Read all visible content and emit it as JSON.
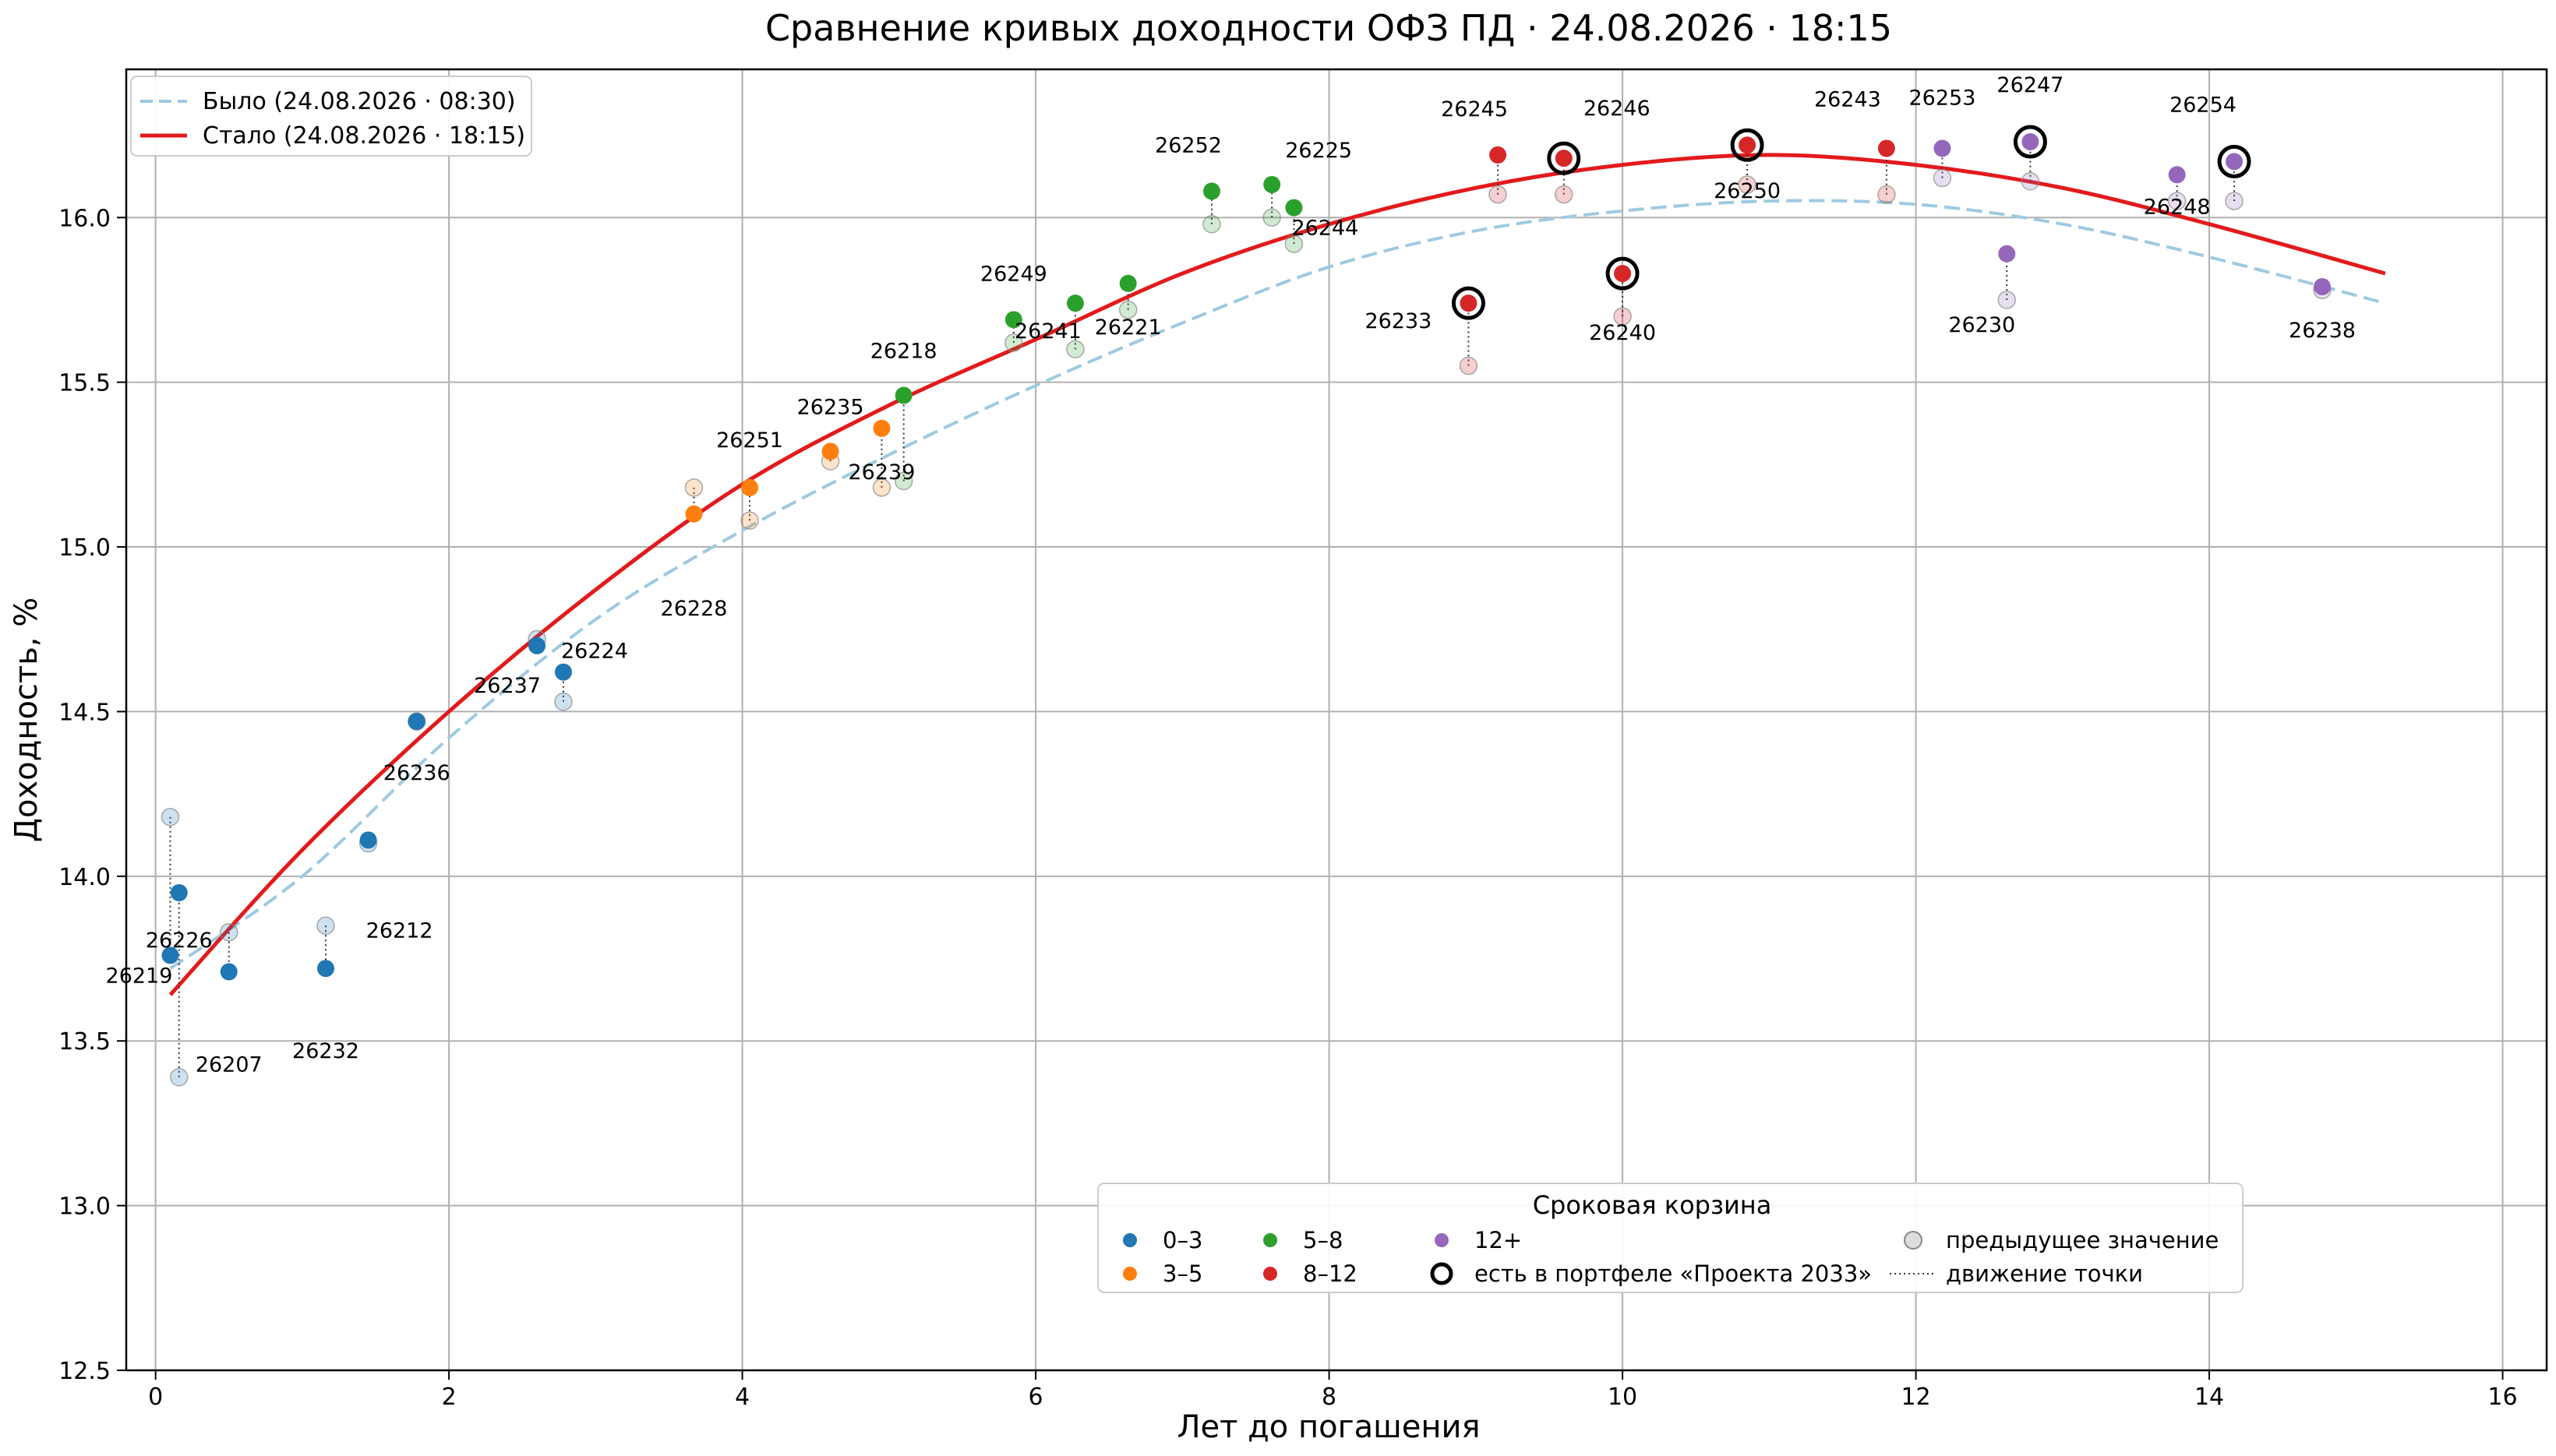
{
  "chart_data": {
    "type": "scatter",
    "title": "Сравнение кривых доходности ОФЗ ПД · 24.08.2026 · 18:15",
    "xlabel": "Лет до погашения",
    "ylabel": "Доходность, %",
    "xlim": [
      -0.2,
      16.3
    ],
    "ylim": [
      12.5,
      16.45
    ],
    "x_ticks": [
      0,
      2,
      4,
      6,
      8,
      10,
      12,
      14,
      16
    ],
    "y_ticks": [
      12.5,
      13.0,
      13.5,
      14.0,
      14.5,
      15.0,
      15.5,
      16.0
    ],
    "y_tick_labels": [
      "12.5",
      "13.0",
      "13.5",
      "14.0",
      "14.5",
      "15.0",
      "15.5",
      "16.0"
    ],
    "grid": true,
    "legend_top_left": {
      "placement": "upper-left",
      "entries": [
        {
          "label": "Было (24.08.2026 · 08:30)",
          "color": "#9ecae1",
          "style": "dashed"
        },
        {
          "label": "Стало (24.08.2026 · 18:15)",
          "color": "#e31a1c",
          "style": "solid"
        }
      ]
    },
    "legend_bottom": {
      "placement": "lower-right",
      "title": "Сроковая корзина",
      "entries": [
        {
          "label": "0–3",
          "kind": "dot",
          "color": "#1f77b4"
        },
        {
          "label": "3–5",
          "kind": "dot",
          "color": "#ff7f0e"
        },
        {
          "label": "5–8",
          "kind": "dot",
          "color": "#2ca02c"
        },
        {
          "label": "8–12",
          "kind": "dot",
          "color": "#d62728"
        },
        {
          "label": "12+",
          "kind": "dot",
          "color": "#9467bd"
        },
        {
          "label": "есть в портфеле «Проекта 2033»",
          "kind": "ring"
        },
        {
          "label": "предыдущее значение",
          "kind": "prev"
        },
        {
          "label": "движение точки",
          "kind": "move"
        }
      ]
    },
    "buckets": {
      "0–3": "#1f77b4",
      "3–5": "#ff7f0e",
      "5–8": "#2ca02c",
      "8–12": "#d62728",
      "12+": "#9467bd"
    },
    "curves": [
      {
        "name": "Было (24.08.2026 · 08:30)",
        "color": "#9ecae1",
        "style": "dashed",
        "x": [
          0.1,
          1,
          2,
          3,
          4,
          5,
          6,
          7,
          8,
          9,
          10,
          11,
          12,
          13,
          14,
          15.2
        ],
        "y": [
          13.72,
          14.0,
          14.42,
          14.78,
          15.05,
          15.28,
          15.49,
          15.68,
          15.85,
          15.96,
          16.02,
          16.05,
          16.04,
          15.98,
          15.88,
          15.74
        ]
      },
      {
        "name": "Стало (24.08.2026 · 18:15)",
        "color": "#e31a1c",
        "style": "solid",
        "x": [
          0.1,
          1,
          2,
          3,
          4,
          5,
          6,
          7,
          8,
          9,
          10,
          11,
          12,
          13,
          14,
          15.2
        ],
        "y": [
          13.64,
          14.08,
          14.5,
          14.87,
          15.19,
          15.43,
          15.63,
          15.83,
          15.98,
          16.09,
          16.16,
          16.19,
          16.16,
          16.09,
          15.98,
          15.83
        ]
      }
    ],
    "points": [
      {
        "label": "26219",
        "x": 0.1,
        "prev": 14.18,
        "y": 13.76,
        "bucket": "0–3",
        "portfolio": false
      },
      {
        "label": "26226",
        "x": 0.16,
        "prev": 13.39,
        "y": 13.95,
        "bucket": "0–3",
        "portfolio": false
      },
      {
        "label": "26207",
        "x": 0.5,
        "prev": 13.83,
        "y": 13.71,
        "bucket": "0–3",
        "portfolio": false
      },
      {
        "label": "26232",
        "x": 1.16,
        "prev": 13.85,
        "y": 13.72,
        "bucket": "0–3",
        "portfolio": false
      },
      {
        "label": "26212",
        "x": 1.45,
        "prev": 14.1,
        "y": 14.11,
        "bucket": "0–3",
        "portfolio": false
      },
      {
        "label": "26236",
        "x": 1.78,
        "prev": 14.47,
        "y": 14.47,
        "bucket": "0–3",
        "portfolio": false
      },
      {
        "label": "26237",
        "x": 2.6,
        "prev": 14.72,
        "y": 14.7,
        "bucket": "0–3",
        "portfolio": false
      },
      {
        "label": "26224",
        "x": 2.78,
        "prev": 14.53,
        "y": 14.62,
        "bucket": "0–3",
        "portfolio": false
      },
      {
        "label": "26228",
        "x": 3.67,
        "prev": 15.18,
        "y": 15.1,
        "bucket": "3–5",
        "portfolio": false
      },
      {
        "label": "26251",
        "x": 4.05,
        "prev": 15.08,
        "y": 15.18,
        "bucket": "3–5",
        "portfolio": false
      },
      {
        "label": "26235",
        "x": 4.6,
        "prev": 15.26,
        "y": 15.29,
        "bucket": "3–5",
        "portfolio": false
      },
      {
        "label": "26239",
        "x": 4.95,
        "prev": 15.18,
        "y": 15.36,
        "bucket": "3–5",
        "portfolio": false
      },
      {
        "label": "26218",
        "x": 5.1,
        "prev": 15.2,
        "y": 15.46,
        "bucket": "5–8",
        "portfolio": false
      },
      {
        "label": "26249",
        "x": 5.85,
        "prev": 15.62,
        "y": 15.69,
        "bucket": "5–8",
        "portfolio": false
      },
      {
        "label": "26241",
        "x": 6.27,
        "prev": 15.6,
        "y": 15.74,
        "bucket": "5–8",
        "portfolio": false
      },
      {
        "label": "26221",
        "x": 6.63,
        "prev": 15.72,
        "y": 15.8,
        "bucket": "5–8",
        "portfolio": false
      },
      {
        "label": "26252",
        "x": 7.2,
        "prev": 15.98,
        "y": 16.08,
        "bucket": "5–8",
        "portfolio": false
      },
      {
        "label": "26225",
        "x": 7.61,
        "prev": 16.0,
        "y": 16.1,
        "bucket": "5–8",
        "portfolio": false
      },
      {
        "label": "26244",
        "x": 7.76,
        "prev": 15.92,
        "y": 16.03,
        "bucket": "5–8",
        "portfolio": false
      },
      {
        "label": "26233",
        "x": 8.95,
        "prev": 15.55,
        "y": 15.74,
        "bucket": "8–12",
        "portfolio": true
      },
      {
        "label": "26245",
        "x": 9.15,
        "prev": 16.07,
        "y": 16.19,
        "bucket": "8–12",
        "portfolio": false
      },
      {
        "label": "26246",
        "x": 9.6,
        "prev": 16.07,
        "y": 16.18,
        "bucket": "8–12",
        "portfolio": true
      },
      {
        "label": "26240",
        "x": 10.0,
        "prev": 15.7,
        "y": 15.83,
        "bucket": "8–12",
        "portfolio": true
      },
      {
        "label": "26250",
        "x": 10.85,
        "prev": 16.1,
        "y": 16.22,
        "bucket": "8–12",
        "portfolio": true
      },
      {
        "label": "26243",
        "x": 11.8,
        "prev": 16.07,
        "y": 16.21,
        "bucket": "8–12",
        "portfolio": false
      },
      {
        "label": "26253",
        "x": 12.18,
        "prev": 16.12,
        "y": 16.21,
        "bucket": "12+",
        "portfolio": false
      },
      {
        "label": "26230",
        "x": 12.62,
        "prev": 15.75,
        "y": 15.89,
        "bucket": "12+",
        "portfolio": false
      },
      {
        "label": "26247",
        "x": 12.78,
        "prev": 16.11,
        "y": 16.23,
        "bucket": "12+",
        "portfolio": true
      },
      {
        "label": "26248",
        "x": 13.78,
        "prev": 16.05,
        "y": 16.13,
        "bucket": "12+",
        "portfolio": false
      },
      {
        "label": "26254",
        "x": 14.17,
        "prev": 16.05,
        "y": 16.17,
        "bucket": "12+",
        "portfolio": true
      },
      {
        "label": "26238",
        "x": 14.77,
        "prev": 15.78,
        "y": 15.79,
        "bucket": "12+",
        "portfolio": false
      }
    ]
  }
}
